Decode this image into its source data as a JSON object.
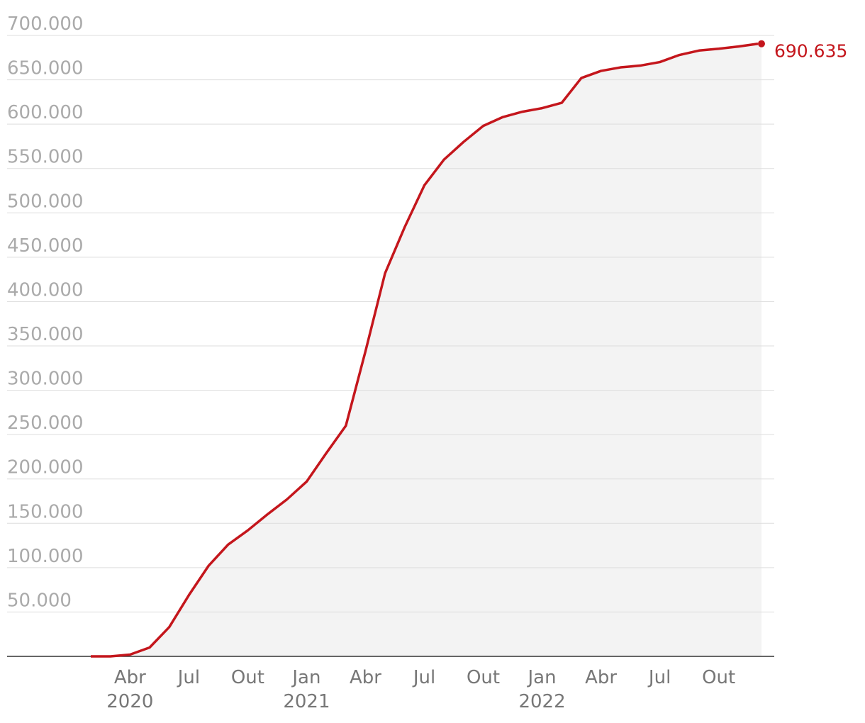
{
  "chart_data": {
    "type": "line",
    "x": [
      "2020-02",
      "2020-03",
      "2020-04",
      "2020-05",
      "2020-06",
      "2020-07",
      "2020-08",
      "2020-09",
      "2020-10",
      "2020-11",
      "2020-12",
      "2021-01",
      "2021-02",
      "2021-03",
      "2021-04",
      "2021-05",
      "2021-06",
      "2021-07",
      "2021-08",
      "2021-09",
      "2021-10",
      "2021-11",
      "2021-12",
      "2022-01",
      "2022-02",
      "2022-03",
      "2022-04",
      "2022-05",
      "2022-06",
      "2022-07",
      "2022-08",
      "2022-09",
      "2022-10",
      "2022-11",
      "2022-12"
    ],
    "series": [
      {
        "color": "#c4161c",
        "values": [
          0,
          0,
          2000,
          10000,
          33000,
          69000,
          102000,
          126000,
          142000,
          160000,
          177000,
          197000,
          229000,
          260000,
          344000,
          432000,
          484000,
          531000,
          560000,
          580000,
          598000,
          608000,
          614000,
          618000,
          624000,
          652000,
          660000,
          664000,
          666000,
          670000,
          678000,
          683000,
          685000,
          687500,
          690635
        ],
        "value_labels": [
          null,
          null,
          null,
          null,
          null,
          null,
          null,
          null,
          null,
          null,
          null,
          null,
          null,
          null,
          null,
          null,
          null,
          null,
          null,
          null,
          null,
          null,
          null,
          null,
          null,
          null,
          null,
          null,
          null,
          null,
          null,
          null,
          null,
          null,
          "690.635"
        ]
      }
    ],
    "xlim": [
      "2020-02",
      "2022-12"
    ],
    "xticks": [
      {
        "value": "2020-04",
        "label": "Abr",
        "year": "2020"
      },
      {
        "value": "2020-07",
        "label": "Jul"
      },
      {
        "value": "2020-10",
        "label": "Out"
      },
      {
        "value": "2021-01",
        "label": "Jan",
        "year": "2021"
      },
      {
        "value": "2021-04",
        "label": "Abr"
      },
      {
        "value": "2021-07",
        "label": "Jul"
      },
      {
        "value": "2021-10",
        "label": "Out"
      },
      {
        "value": "2022-01",
        "label": "Jan",
        "year": "2022"
      },
      {
        "value": "2022-04",
        "label": "Abr"
      },
      {
        "value": "2022-07",
        "label": "Jul"
      },
      {
        "value": "2022-10",
        "label": "Out"
      }
    ],
    "ylim": [
      0,
      700000
    ],
    "yticks": [
      {
        "value": 50000,
        "label": "50.000"
      },
      {
        "value": 100000,
        "label": "100.000"
      },
      {
        "value": 150000,
        "label": "150.000"
      },
      {
        "value": 200000,
        "label": "200.000"
      },
      {
        "value": 250000,
        "label": "250.000"
      },
      {
        "value": 300000,
        "label": "300.000"
      },
      {
        "value": 350000,
        "label": "350.000"
      },
      {
        "value": 400000,
        "label": "400.000"
      },
      {
        "value": 450000,
        "label": "450.000"
      },
      {
        "value": 500000,
        "label": "500.000"
      },
      {
        "value": 550000,
        "label": "550.000"
      },
      {
        "value": 600000,
        "label": "600.000"
      },
      {
        "value": 650000,
        "label": "650.000"
      },
      {
        "value": 700000,
        "label": "700.000"
      }
    ],
    "grid": true
  }
}
